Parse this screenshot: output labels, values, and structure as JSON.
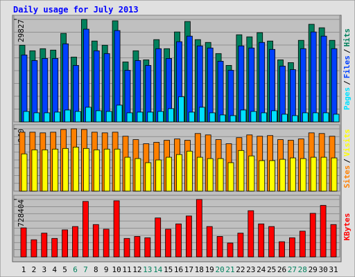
{
  "title": "Daily usage for July 2013",
  "legend_separator": "/",
  "chart_data": [
    {
      "type": "bar",
      "ylim": [
        0,
        29827
      ],
      "yticks": [
        29827
      ],
      "series": [
        {
          "name": "Pages",
          "color": "#00e0ff",
          "values": [
            3044,
            2638,
            2638,
            2841,
            3449,
            3044,
            4261,
            3246,
            3044,
            4870,
            2638,
            2841,
            2841,
            3044,
            3855,
            7304,
            2841,
            4261,
            2638,
            2029,
            1826,
            3449,
            3044,
            2638,
            3246,
            2232,
            1826,
            2638,
            2638,
            2638,
            2232
          ]
        },
        {
          "name": "Files",
          "color": "#0040ff",
          "values": [
            19478,
            17855,
            18464,
            18464,
            22725,
            16435,
            26986,
            20696,
            19884,
            26580,
            15015,
            17855,
            16435,
            21305,
            18464,
            23334,
            24957,
            22116,
            21507,
            17652,
            15015,
            22116,
            21507,
            23131,
            21102,
            16232,
            15218,
            21305,
            26174,
            24957,
            21305
          ]
        },
        {
          "name": "Hits",
          "color": "#00805c",
          "values": [
            22319,
            20696,
            21305,
            20899,
            25768,
            18870,
            29827,
            23536,
            22319,
            29421,
            17449,
            20696,
            18058,
            23942,
            21305,
            26174,
            29218,
            23942,
            23131,
            19884,
            16435,
            25363,
            24754,
            25971,
            23536,
            18058,
            17247,
            23739,
            28406,
            27392,
            23739
          ]
        }
      ]
    },
    {
      "type": "bar",
      "ylim": [
        0,
        940
      ],
      "yticks": [
        940
      ],
      "series": [
        {
          "name": "Sites",
          "color": "#ff8000",
          "values": [
            889,
            889,
            879,
            889,
            930,
            940,
            930,
            889,
            879,
            889,
            828,
            777,
            715,
            736,
            767,
            787,
            767,
            869,
            848,
            777,
            715,
            807,
            848,
            828,
            838,
            777,
            767,
            787,
            879,
            869,
            828
          ]
        },
        {
          "name": "Visits",
          "color": "#ffff00",
          "values": [
            562,
            623,
            623,
            634,
            644,
            664,
            644,
            623,
            634,
            634,
            511,
            491,
            429,
            470,
            511,
            552,
            603,
            511,
            491,
            491,
            429,
            613,
            531,
            460,
            460,
            480,
            501,
            491,
            511,
            511,
            501
          ]
        }
      ]
    },
    {
      "type": "bar",
      "ylim": [
        0,
        728404
      ],
      "yticks": [
        728404
      ],
      "categories": [
        "1",
        "2",
        "3",
        "4",
        "5",
        "6",
        "7",
        "8",
        "9",
        "10",
        "11",
        "12",
        "13",
        "14",
        "15",
        "16",
        "17",
        "18",
        "19",
        "20",
        "21",
        "22",
        "23",
        "24",
        "25",
        "26",
        "27",
        "28",
        "29",
        "30",
        "31"
      ],
      "category_colors": [
        "#000000",
        "#000000",
        "#000000",
        "#000000",
        "#000000",
        "#00805c",
        "#00805c",
        "#000000",
        "#000000",
        "#000000",
        "#000000",
        "#000000",
        "#00805c",
        "#00805c",
        "#000000",
        "#000000",
        "#000000",
        "#000000",
        "#000000",
        "#00805c",
        "#00805c",
        "#000000",
        "#000000",
        "#000000",
        "#000000",
        "#000000",
        "#00805c",
        "#00805c",
        "#000000",
        "#000000",
        "#000000"
      ],
      "series": [
        {
          "name": "KBytes",
          "color": "#ff0000",
          "values": [
            368368,
            217672,
            301392,
            234416,
            343252,
            385112,
            703248,
            410228,
            351624,
            711620,
            234416,
            259532,
            242788,
            493948,
            351624,
            418600,
            519064,
            728404,
            385112,
            259532,
            175812,
            301392,
            586040,
            418600,
            385112,
            192556,
            242788,
            326508,
            552552,
            653016,
            410228
          ]
        }
      ]
    }
  ]
}
